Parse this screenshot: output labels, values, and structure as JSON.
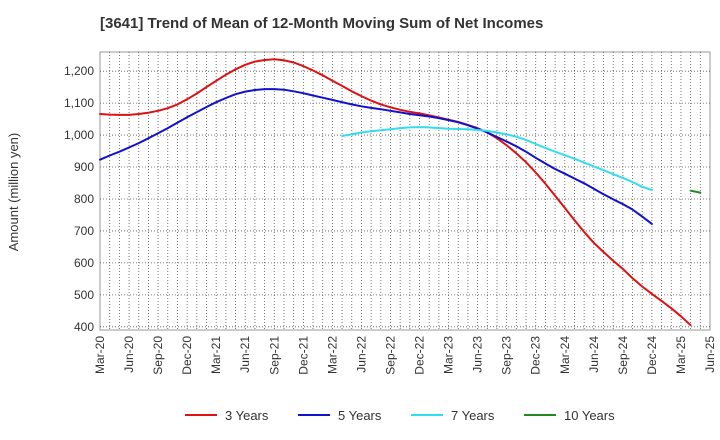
{
  "chart_data": {
    "type": "line",
    "title": "[3641]  Trend of Mean of 12-Month Moving Sum of Net Incomes",
    "xlabel": "",
    "ylabel": "Amount (million yen)",
    "ylim": [
      390,
      1260
    ],
    "yticks": [
      400,
      500,
      600,
      700,
      800,
      900,
      1000,
      1100,
      1200
    ],
    "ytick_labels": [
      "400",
      "500",
      "600",
      "700",
      "800",
      "900",
      "1,000",
      "1,100",
      "1,200"
    ],
    "xlim": [
      0,
      100
    ],
    "xticks": [
      "Mar-20",
      "Jun-20",
      "Sep-20",
      "Dec-20",
      "Mar-21",
      "Jun-21",
      "Sep-21",
      "Dec-21",
      "Mar-22",
      "Jun-22",
      "Sep-22",
      "Dec-22",
      "Mar-23",
      "Jun-23",
      "Sep-23",
      "Dec-23",
      "Mar-24",
      "Jun-24",
      "Sep-24",
      "Dec-24",
      "Mar-25",
      "Jun-25"
    ],
    "x_index": [
      0,
      1,
      2,
      3,
      4,
      5,
      6,
      7,
      8,
      9,
      10,
      11,
      12,
      13,
      14,
      15,
      16,
      17,
      18,
      19,
      20,
      21,
      22,
      23,
      24,
      25,
      26,
      27,
      28,
      29,
      30,
      31,
      32,
      33,
      34,
      35,
      36,
      37,
      38,
      39,
      40,
      41,
      42,
      43,
      44,
      45,
      46,
      47,
      48,
      49,
      50,
      51,
      52,
      53,
      54,
      55,
      56,
      57,
      58,
      59,
      60,
      61,
      62,
      63
    ],
    "series": [
      {
        "name": "3 Years",
        "color": "#dd1111",
        "start_index": 0,
        "values": [
          1066,
          1064,
          1063,
          1063,
          1066,
          1070,
          1076,
          1084,
          1096,
          1112,
          1130,
          1150,
          1170,
          1189,
          1206,
          1220,
          1230,
          1235,
          1237,
          1234,
          1227,
          1216,
          1202,
          1187,
          1170,
          1154,
          1137,
          1122,
          1108,
          1096,
          1087,
          1079,
          1073,
          1068,
          1062,
          1055,
          1048,
          1041,
          1032,
          1022,
          1008,
          990,
          968,
          943,
          915,
          883,
          848,
          810,
          772,
          734,
          697,
          663,
          634,
          607,
          581,
          552,
          526,
          503,
          481,
          458,
          433,
          405
        ]
      },
      {
        "name": "5 Years",
        "color": "#1111cc",
        "start_index": 0,
        "values": [
          923,
          936,
          948,
          961,
          975,
          990,
          1006,
          1022,
          1039,
          1056,
          1072,
          1088,
          1103,
          1116,
          1128,
          1136,
          1141,
          1144,
          1144,
          1142,
          1137,
          1131,
          1124,
          1117,
          1110,
          1103,
          1096,
          1090,
          1085,
          1081,
          1076,
          1071,
          1066,
          1062,
          1058,
          1053,
          1047,
          1040,
          1031,
          1020,
          1008,
          994,
          980,
          965,
          948,
          929,
          911,
          894,
          879,
          864,
          849,
          832,
          815,
          799,
          784,
          767,
          745,
          722
        ]
      },
      {
        "name": "7 Years",
        "color": "#33ddee",
        "start_index": 25,
        "values": [
          997,
          1002,
          1008,
          1012,
          1015,
          1018,
          1022,
          1024,
          1025,
          1024,
          1022,
          1020,
          1019,
          1018,
          1016,
          1013,
          1008,
          1002,
          995,
          985,
          972,
          960,
          948,
          937,
          926,
          914,
          902,
          890,
          878,
          866,
          853,
          838,
          828
        ]
      },
      {
        "name": "10 Years",
        "color": "#228822",
        "start_index": 61,
        "values": [
          826,
          820
        ]
      }
    ],
    "grid": true,
    "legend_position": "bottom"
  }
}
